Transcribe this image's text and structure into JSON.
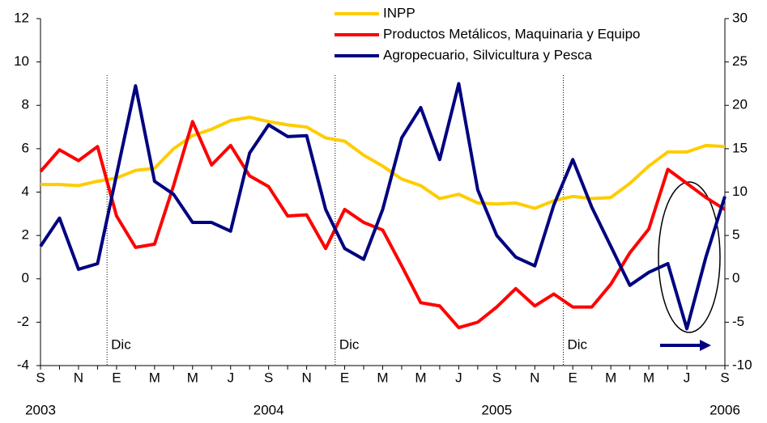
{
  "chart_data": {
    "type": "line",
    "categories": [
      "S",
      null,
      "N",
      null,
      "E",
      null,
      "M",
      null,
      "M",
      null,
      "J",
      null,
      "S",
      null,
      "N",
      null,
      "E",
      null,
      "M",
      null,
      "M",
      null,
      "J",
      null,
      "S",
      null,
      "N",
      null,
      "E",
      null,
      "M",
      null,
      "M",
      null,
      "J",
      null,
      "S"
    ],
    "category_years": [
      "2003",
      null,
      null,
      null,
      null,
      null,
      null,
      null,
      null,
      null,
      null,
      null,
      "2004",
      null,
      null,
      null,
      null,
      null,
      null,
      null,
      null,
      null,
      null,
      null,
      "2005",
      null,
      null,
      null,
      null,
      null,
      null,
      null,
      null,
      null,
      null,
      null,
      "2006"
    ],
    "ylim": [
      -4,
      12
    ],
    "yticks": [
      -4,
      -2,
      0,
      2,
      4,
      6,
      8,
      10,
      12
    ],
    "y2lim": [
      -10,
      30
    ],
    "y2ticks": [
      -10,
      -5,
      0,
      5,
      10,
      15,
      20,
      25,
      30
    ],
    "series": [
      {
        "name": "INPP",
        "color": "#ffcc00",
        "values": [
          4.35,
          4.35,
          4.3,
          4.5,
          4.65,
          5.0,
          5.1,
          6.0,
          6.6,
          6.9,
          7.3,
          7.45,
          7.25,
          7.1,
          7.0,
          6.5,
          6.35,
          5.7,
          5.2,
          4.6,
          4.3,
          3.7,
          3.9,
          3.5,
          3.45,
          3.5,
          3.25,
          3.6,
          3.8,
          3.7,
          3.75,
          4.4,
          5.2,
          5.85,
          5.85,
          6.15,
          6.1
        ]
      },
      {
        "name": "Productos Metálicos, Maquinaria y Equipo",
        "color": "#ff0000",
        "values": [
          4.95,
          5.95,
          5.45,
          6.1,
          2.9,
          1.45,
          1.6,
          4.3,
          7.25,
          5.25,
          6.15,
          4.75,
          4.25,
          2.9,
          2.95,
          1.4,
          3.2,
          2.6,
          2.25,
          0.6,
          -1.1,
          -1.25,
          -2.25,
          -2.0,
          -1.3,
          -0.45,
          -1.25,
          -0.7,
          -1.3,
          -1.3,
          -0.25,
          1.2,
          2.3,
          5.05,
          4.4,
          3.75,
          3.2
        ]
      },
      {
        "name": "Agropecuario, Silvicultura y Pesca",
        "color": "#000080",
        "axis": "y2",
        "values": [
          3.75,
          7,
          1.1,
          1.75,
          12,
          22.25,
          11.25,
          9.75,
          6.5,
          6.5,
          5.5,
          14.5,
          17.75,
          16.4,
          16.5,
          8,
          3.5,
          2.25,
          8,
          16.25,
          19.75,
          13.75,
          22.5,
          10.25,
          5,
          2.5,
          1.5,
          8.5,
          13.75,
          8.25,
          3.75,
          -0.75,
          0.75,
          1.75,
          -5.75,
          2.5,
          9.5
        ]
      }
    ],
    "annotations": [
      {
        "text": "Dic",
        "x": 3.5
      },
      {
        "text": "Dic",
        "x": 15.5
      },
      {
        "text": "Dic",
        "x": 27.5
      }
    ]
  }
}
